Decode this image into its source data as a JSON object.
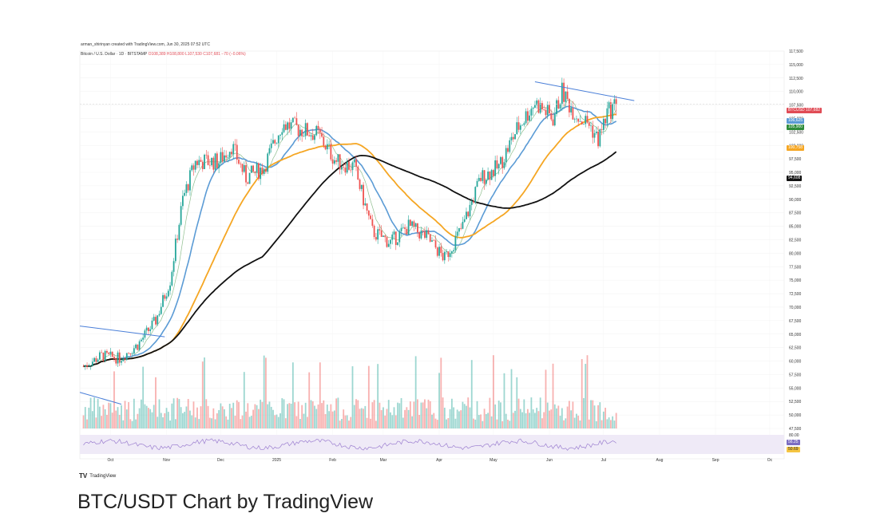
{
  "header": {
    "author_line": "arman_shirinyan created with TradingView.com, Jun 30, 2025 07:52 UTC",
    "symbol_title": "Bitcoin / U.S. Dollar · 1D · BITSTAMP",
    "ohlc": "O108,389 H108,800 L107,530 C107,681 −70 (−0.06%)"
  },
  "caption": "BTC/USDT Chart by TradingView",
  "logo_text": "TradingView",
  "colors": {
    "up": "#26a69a",
    "down": "#ef5350",
    "ma_fast": "#5b9bd5",
    "ma_mid": "#f5a623",
    "ma_slow": "#111111",
    "ma_thin": "#8fbf8f",
    "trendline": "#4a7fd8",
    "rsi_line": "#9c7fd0"
  },
  "price_tags": [
    {
      "label": "BTCUSD",
      "value": "107,682",
      "color": "#e04b55"
    },
    {
      "label": "MA",
      "value": "106,625",
      "color": "#5b9bd5"
    },
    {
      "label": "MA",
      "value": "105,900",
      "color": "#2e8b3a"
    },
    {
      "label": "MA",
      "value": "100,758",
      "color": "#f5a623"
    },
    {
      "label": "MA",
      "value": "94,608",
      "color": "#111111"
    }
  ],
  "rsi_tags": [
    {
      "value": "56.25",
      "color": "#7b6cc2"
    },
    {
      "value": "50.69",
      "color": "#f5c542"
    }
  ],
  "rsi_top_label": "80.00",
  "chart_data": {
    "type": "candlestick",
    "y_axis": {
      "ticks": [
        117500,
        115000,
        112500,
        110000,
        107500,
        105000,
        102500,
        100000,
        97500,
        95000,
        92500,
        90000,
        87500,
        85000,
        82500,
        80000,
        77500,
        75000,
        72500,
        70000,
        67500,
        65000,
        62500,
        60000,
        57500,
        55000,
        52500,
        50000,
        47500
      ],
      "tick_labels": [
        "117,500",
        "115,000",
        "112,500",
        "110,000",
        "107,500",
        "105,000",
        "102,500",
        "100,000",
        "97,500",
        "95,000",
        "92,500",
        "90,000",
        "87,500",
        "85,000",
        "82,500",
        "80,000",
        "77,500",
        "75,000",
        "72,500",
        "70,000",
        "67,500",
        "65,000",
        "62,500",
        "60,000",
        "57,500",
        "55,000",
        "52,500",
        "50,000",
        "47,500"
      ],
      "range": [
        47500,
        117500
      ]
    },
    "x_axis": {
      "labels": [
        "Oct",
        "Nov",
        "Dec",
        "2025",
        "Feb",
        "Mar",
        "Apr",
        "May",
        "Jun",
        "Jul",
        "Aug",
        "Sep",
        "Oc"
      ],
      "label_days": [
        15,
        46,
        76,
        107,
        138,
        166,
        197,
        227,
        258,
        288,
        319,
        350,
        380
      ]
    },
    "key_closes": [
      {
        "day": 0,
        "close": 59000
      },
      {
        "day": 10,
        "close": 61000
      },
      {
        "day": 20,
        "close": 60500
      },
      {
        "day": 30,
        "close": 63000
      },
      {
        "day": 40,
        "close": 67500
      },
      {
        "day": 48,
        "close": 75000
      },
      {
        "day": 55,
        "close": 90000
      },
      {
        "day": 62,
        "close": 97000
      },
      {
        "day": 75,
        "close": 97000
      },
      {
        "day": 82,
        "close": 100000
      },
      {
        "day": 90,
        "close": 94000
      },
      {
        "day": 100,
        "close": 96000
      },
      {
        "day": 110,
        "close": 104000
      },
      {
        "day": 120,
        "close": 103000
      },
      {
        "day": 130,
        "close": 102000
      },
      {
        "day": 140,
        "close": 97000
      },
      {
        "day": 150,
        "close": 96000
      },
      {
        "day": 160,
        "close": 84000
      },
      {
        "day": 170,
        "close": 82000
      },
      {
        "day": 180,
        "close": 85000
      },
      {
        "day": 190,
        "close": 83000
      },
      {
        "day": 200,
        "close": 79000
      },
      {
        "day": 205,
        "close": 82000
      },
      {
        "day": 210,
        "close": 85000
      },
      {
        "day": 220,
        "close": 94000
      },
      {
        "day": 230,
        "close": 96000
      },
      {
        "day": 240,
        "close": 103000
      },
      {
        "day": 250,
        "close": 108000
      },
      {
        "day": 260,
        "close": 105000
      },
      {
        "day": 265,
        "close": 110000
      },
      {
        "day": 270,
        "close": 107000
      },
      {
        "day": 275,
        "close": 105000
      },
      {
        "day": 280,
        "close": 104000
      },
      {
        "day": 285,
        "close": 101000
      },
      {
        "day": 290,
        "close": 106000
      },
      {
        "day": 295,
        "close": 107681
      }
    ]
  }
}
